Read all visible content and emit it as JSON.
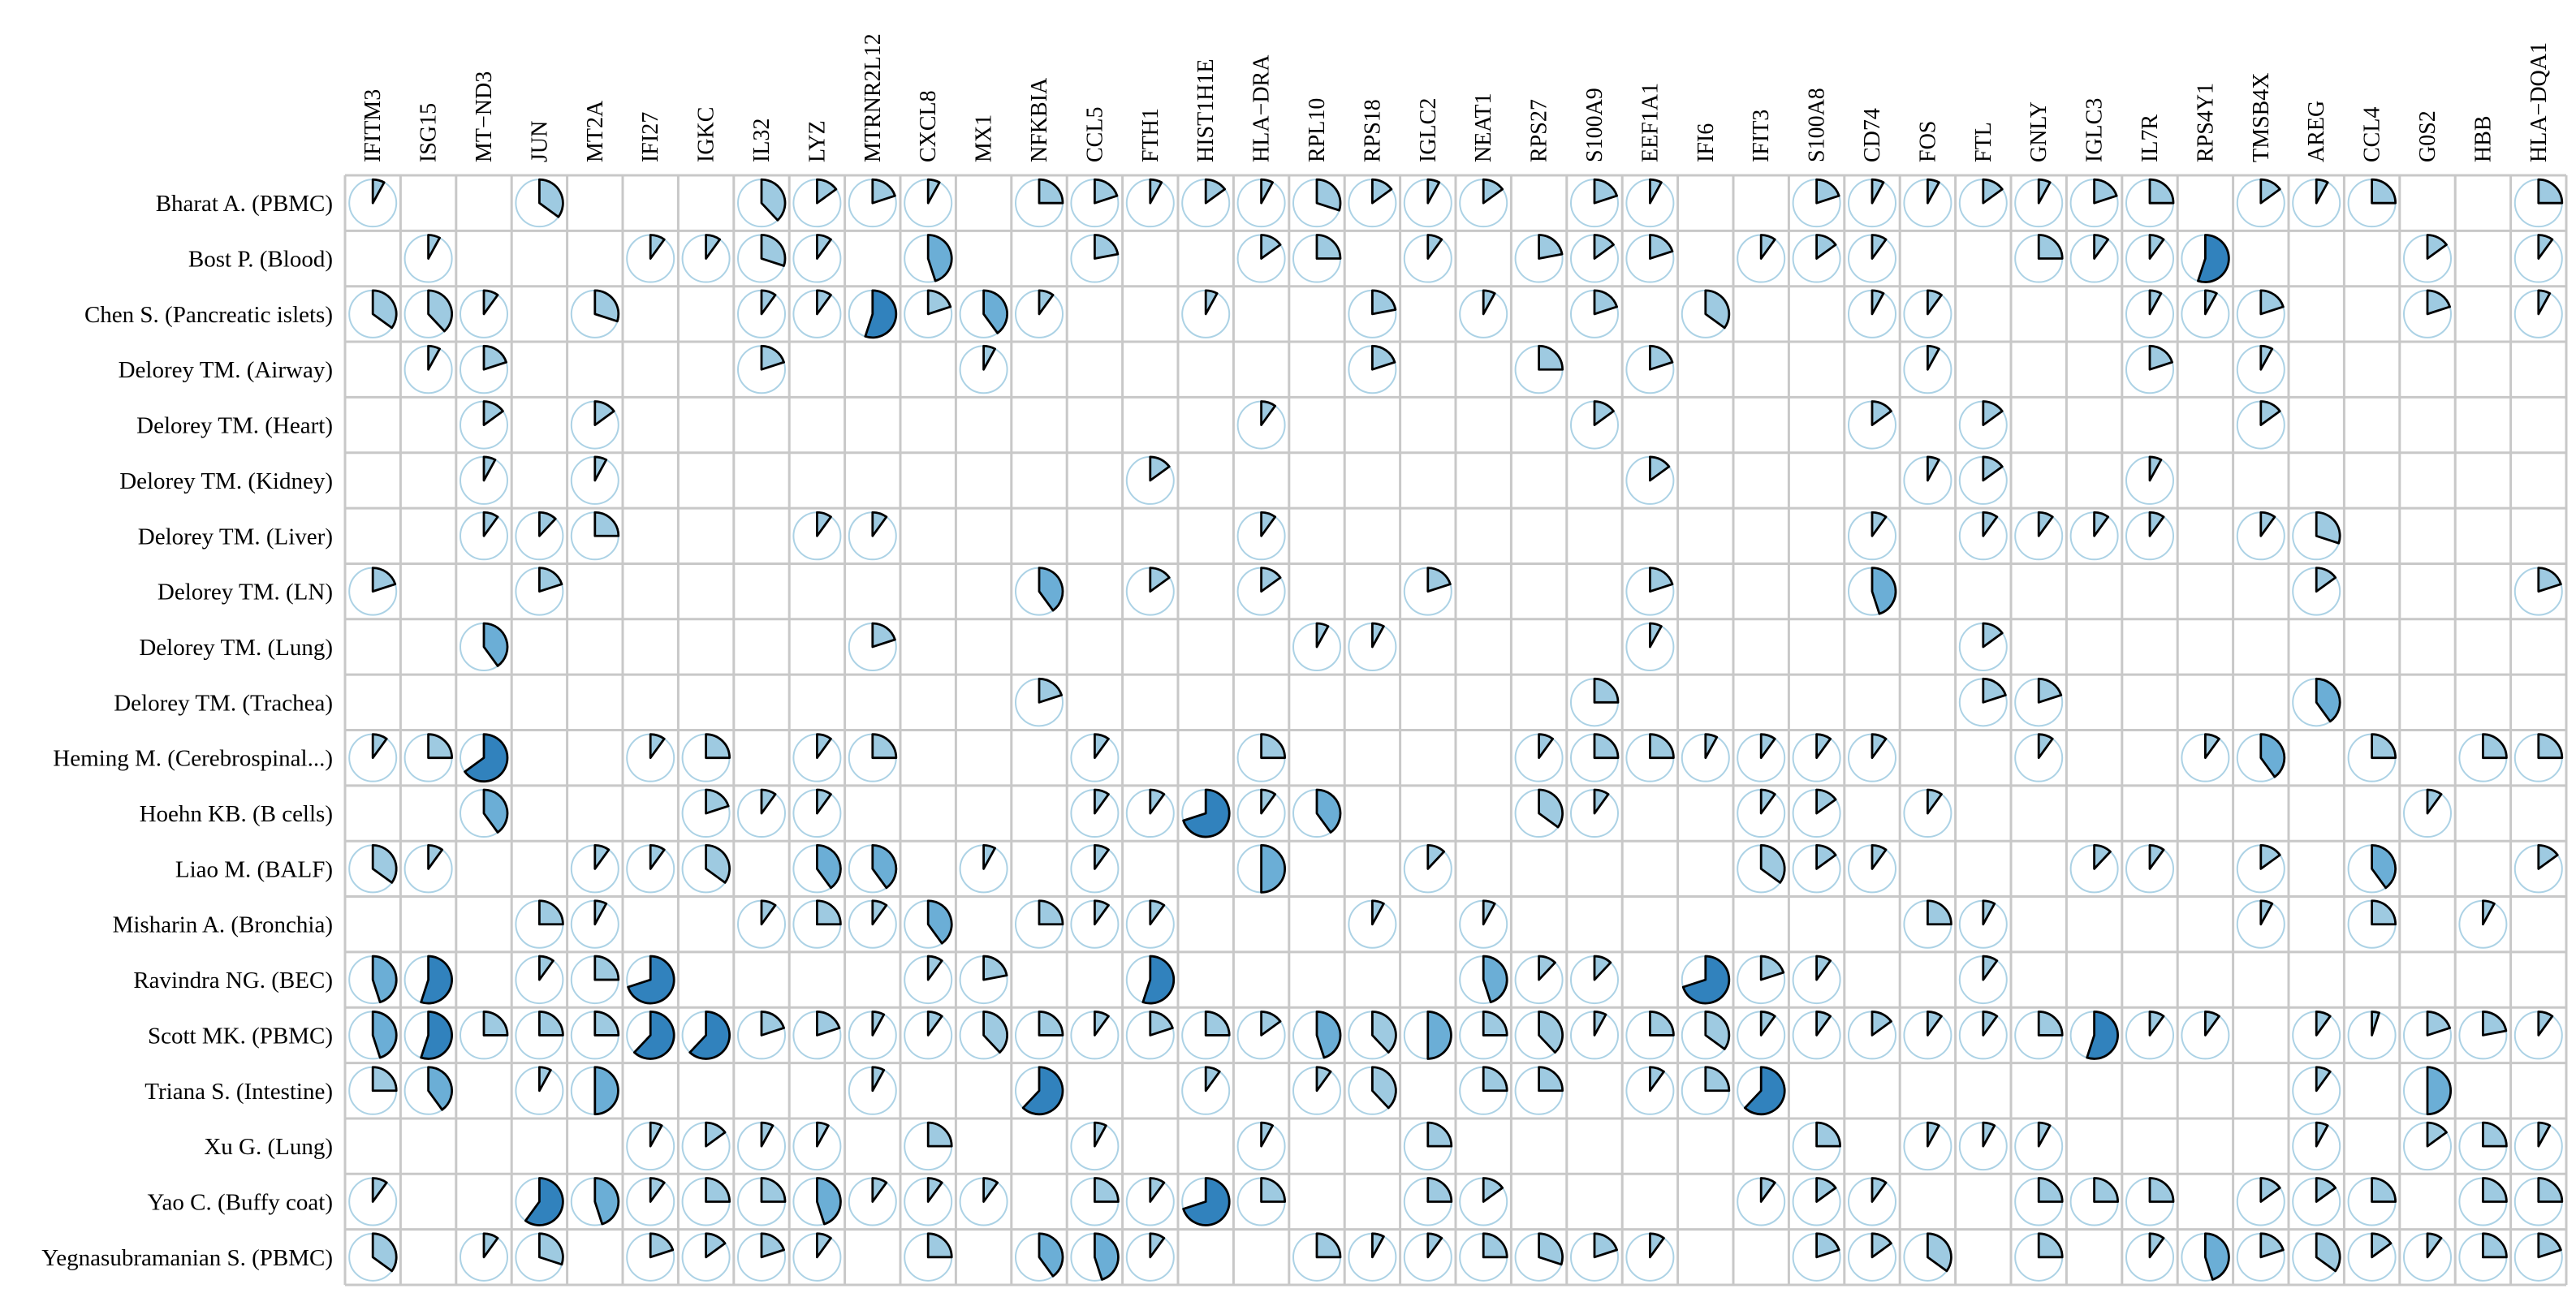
{
  "chart_data": {
    "type": "heatmap",
    "title": "",
    "xlabel": "",
    "ylabel": "",
    "value_range": [
      0,
      1
    ],
    "colors": {
      "grid": "#c8c8c8",
      "ring": "#9ecae1",
      "light": "#9ecae1",
      "mid": "#6baed6",
      "dark": "#3182bd",
      "outline": "#000000"
    },
    "columns": [
      "IFITM3",
      "ISG15",
      "MT−ND3",
      "JUN",
      "MT2A",
      "IFI27",
      "IGKC",
      "IL32",
      "LYZ",
      "MTRNR2L12",
      "CXCL8",
      "MX1",
      "NFKBIA",
      "CCL5",
      "FTH1",
      "HIST1H1E",
      "HLA−DRA",
      "RPL10",
      "RPS18",
      "IGLC2",
      "NEAT1",
      "RPS27",
      "S100A9",
      "EEF1A1",
      "IFI6",
      "IFIT3",
      "S100A8",
      "CD74",
      "FOS",
      "FTL",
      "GNLY",
      "IGLC3",
      "IL7R",
      "RPS4Y1",
      "TMSB4X",
      "AREG",
      "CCL4",
      "G0S2",
      "HBB",
      "HLA−DQA1"
    ],
    "rows": [
      "Bharat A. (PBMC)",
      "Bost P. (Blood)",
      "Chen S. (Pancreatic islets)",
      "Delorey TM. (Airway)",
      "Delorey TM. (Heart)",
      "Delorey TM. (Kidney)",
      "Delorey TM. (Liver)",
      "Delorey TM. (LN)",
      "Delorey TM. (Lung)",
      "Delorey TM. (Trachea)",
      "Heming M. (Cerebrospinal...)",
      "Hoehn KB. (B cells)",
      "Liao M. (BALF)",
      "Misharin A. (Bronchia)",
      "Ravindra NG. (BEC)",
      "Scott MK. (PBMC)",
      "Triana S. (Intestine)",
      "Xu G. (Lung)",
      "Yao C. (Buffy coat)",
      "Yegnasubramanian S. (PBMC)"
    ],
    "values": [
      [
        0.08,
        0,
        0,
        0.35,
        0,
        0,
        0,
        0.38,
        0.15,
        0.2,
        0.08,
        0,
        0.25,
        0.2,
        0.08,
        0.15,
        0.08,
        0.3,
        0.15,
        0.08,
        0.15,
        0,
        0.2,
        0.08,
        0,
        0,
        0.2,
        0.08,
        0.08,
        0.15,
        0.08,
        0.2,
        0.25,
        0,
        0.15,
        0.08,
        0.25,
        0,
        0,
        0.25
      ],
      [
        0,
        0.08,
        0,
        0,
        0,
        0.1,
        0.1,
        0.3,
        0.1,
        0,
        0.45,
        0,
        0,
        0.22,
        0,
        0,
        0.15,
        0.25,
        0,
        0.1,
        0,
        0.22,
        0.15,
        0.2,
        0,
        0.1,
        0.15,
        0.1,
        0,
        0,
        0.25,
        0.1,
        0.1,
        0.55,
        0,
        0,
        0,
        0.15,
        0,
        0.1
      ],
      [
        0.35,
        0.38,
        0.1,
        0,
        0.3,
        0,
        0,
        0.1,
        0.1,
        0.55,
        0.2,
        0.4,
        0.1,
        0,
        0,
        0.08,
        0,
        0,
        0.22,
        0,
        0.08,
        0,
        0.2,
        0,
        0.35,
        0,
        0,
        0.08,
        0.1,
        0,
        0,
        0,
        0.08,
        0.08,
        0.2,
        0,
        0,
        0.2,
        0,
        0.08
      ],
      [
        0,
        0.08,
        0.2,
        0,
        0,
        0,
        0,
        0.2,
        0,
        0,
        0,
        0.08,
        0,
        0,
        0,
        0,
        0,
        0,
        0.2,
        0,
        0,
        0.25,
        0,
        0.2,
        0,
        0,
        0,
        0,
        0.08,
        0,
        0,
        0,
        0.2,
        0,
        0.08,
        0,
        0,
        0,
        0,
        0
      ],
      [
        0,
        0,
        0.15,
        0,
        0.15,
        0,
        0,
        0,
        0,
        0,
        0,
        0,
        0,
        0,
        0,
        0,
        0.1,
        0,
        0,
        0,
        0,
        0,
        0.15,
        0,
        0,
        0,
        0,
        0.15,
        0,
        0.15,
        0,
        0,
        0,
        0,
        0.15,
        0,
        0,
        0,
        0,
        0
      ],
      [
        0,
        0,
        0.08,
        0,
        0.08,
        0,
        0,
        0,
        0,
        0,
        0,
        0,
        0,
        0,
        0.15,
        0,
        0,
        0,
        0,
        0,
        0,
        0,
        0,
        0.15,
        0,
        0,
        0,
        0,
        0.08,
        0.15,
        0,
        0,
        0.08,
        0,
        0,
        0,
        0,
        0,
        0,
        0
      ],
      [
        0,
        0,
        0.1,
        0.12,
        0.25,
        0,
        0,
        0,
        0.1,
        0.1,
        0,
        0,
        0,
        0,
        0,
        0,
        0.1,
        0,
        0,
        0,
        0,
        0,
        0,
        0,
        0,
        0,
        0,
        0.1,
        0,
        0.1,
        0.1,
        0.1,
        0.1,
        0,
        0.1,
        0.3,
        0,
        0,
        0,
        0
      ],
      [
        0.2,
        0,
        0,
        0.2,
        0,
        0,
        0,
        0,
        0,
        0,
        0,
        0,
        0.4,
        0,
        0.15,
        0,
        0.15,
        0,
        0,
        0.2,
        0,
        0,
        0,
        0.2,
        0,
        0,
        0,
        0.45,
        0,
        0,
        0,
        0,
        0,
        0,
        0,
        0.15,
        0,
        0,
        0,
        0.2
      ],
      [
        0,
        0,
        0.4,
        0,
        0,
        0,
        0,
        0,
        0,
        0.2,
        0,
        0,
        0,
        0,
        0,
        0,
        0,
        0.08,
        0.08,
        0,
        0,
        0,
        0,
        0.08,
        0,
        0,
        0,
        0,
        0,
        0.15,
        0,
        0,
        0,
        0,
        0,
        0,
        0,
        0,
        0,
        0
      ],
      [
        0,
        0,
        0,
        0,
        0,
        0,
        0,
        0,
        0,
        0,
        0,
        0,
        0.2,
        0,
        0,
        0,
        0,
        0,
        0,
        0,
        0,
        0,
        0.25,
        0,
        0,
        0,
        0,
        0,
        0,
        0.2,
        0.2,
        0,
        0,
        0,
        0,
        0.4,
        0,
        0,
        0,
        0
      ],
      [
        0.1,
        0.25,
        0.65,
        0,
        0,
        0.1,
        0.25,
        0,
        0.1,
        0.25,
        0,
        0,
        0,
        0.1,
        0,
        0,
        0.25,
        0,
        0,
        0,
        0,
        0.1,
        0.25,
        0.25,
        0.08,
        0.1,
        0.1,
        0.1,
        0,
        0,
        0.1,
        0,
        0,
        0.1,
        0.4,
        0,
        0.25,
        0,
        0.25,
        0.25
      ],
      [
        0,
        0,
        0.4,
        0,
        0,
        0,
        0.2,
        0.1,
        0.1,
        0,
        0,
        0,
        0,
        0.1,
        0.1,
        0.7,
        0.1,
        0.4,
        0,
        0,
        0,
        0.35,
        0.1,
        0,
        0,
        0.1,
        0.15,
        0,
        0.1,
        0,
        0,
        0,
        0,
        0,
        0,
        0,
        0,
        0.1,
        0,
        0
      ],
      [
        0.35,
        0.1,
        0,
        0,
        0.1,
        0.1,
        0.35,
        0,
        0.4,
        0.4,
        0,
        0.08,
        0,
        0.1,
        0,
        0,
        0.5,
        0,
        0,
        0.12,
        0,
        0,
        0,
        0,
        0,
        0.35,
        0.15,
        0.1,
        0,
        0,
        0,
        0.12,
        0.1,
        0,
        0.15,
        0,
        0.4,
        0,
        0,
        0.15
      ],
      [
        0,
        0,
        0,
        0.25,
        0.08,
        0,
        0,
        0.1,
        0.25,
        0.1,
        0.4,
        0,
        0.25,
        0.1,
        0.1,
        0,
        0,
        0,
        0.08,
        0,
        0.08,
        0,
        0,
        0,
        0,
        0,
        0,
        0,
        0.25,
        0.08,
        0,
        0,
        0,
        0,
        0.08,
        0,
        0.25,
        0,
        0.08,
        0
      ],
      [
        0.45,
        0.55,
        0,
        0.1,
        0.25,
        0.7,
        0,
        0,
        0,
        0,
        0.1,
        0.22,
        0,
        0,
        0.55,
        0,
        0,
        0,
        0,
        0,
        0.45,
        0.12,
        0.12,
        0,
        0.7,
        0.2,
        0.1,
        0,
        0,
        0.1,
        0,
        0,
        0,
        0,
        0,
        0,
        0,
        0,
        0,
        0
      ],
      [
        0.45,
        0.55,
        0.25,
        0.25,
        0.25,
        0.62,
        0.62,
        0.2,
        0.2,
        0.08,
        0.1,
        0.38,
        0.25,
        0.1,
        0.2,
        0.25,
        0.15,
        0.45,
        0.38,
        0.5,
        0.25,
        0.38,
        0.08,
        0.25,
        0.35,
        0.1,
        0.1,
        0.15,
        0.1,
        0.1,
        0.25,
        0.55,
        0.1,
        0.1,
        0,
        0.1,
        0.05,
        0.2,
        0.22,
        0.1
      ],
      [
        0.25,
        0.4,
        0,
        0.08,
        0.5,
        0,
        0,
        0,
        0,
        0.08,
        0,
        0,
        0.62,
        0,
        0,
        0.1,
        0,
        0.1,
        0.38,
        0,
        0.25,
        0.25,
        0,
        0.1,
        0.25,
        0.62,
        0,
        0,
        0,
        0,
        0,
        0,
        0,
        0,
        0,
        0.1,
        0,
        0.5,
        0,
        0
      ],
      [
        0,
        0,
        0,
        0,
        0,
        0.08,
        0.15,
        0.08,
        0.08,
        0,
        0.25,
        0,
        0,
        0.08,
        0,
        0,
        0.08,
        0,
        0,
        0.25,
        0,
        0,
        0,
        0,
        0,
        0,
        0.25,
        0,
        0.08,
        0.08,
        0.08,
        0,
        0,
        0,
        0,
        0.08,
        0,
        0.15,
        0.25,
        0.08
      ],
      [
        0.1,
        0,
        0,
        0.6,
        0.45,
        0.1,
        0.25,
        0.25,
        0.45,
        0.1,
        0.1,
        0.1,
        0,
        0.25,
        0.1,
        0.7,
        0.25,
        0,
        0,
        0.25,
        0.15,
        0,
        0,
        0,
        0,
        0.1,
        0.15,
        0.1,
        0,
        0,
        0.25,
        0.25,
        0.25,
        0,
        0.15,
        0.15,
        0.25,
        0,
        0.25,
        0.25
      ],
      [
        0.35,
        0,
        0.1,
        0.3,
        0,
        0.2,
        0.15,
        0.2,
        0.1,
        0,
        0.25,
        0,
        0.4,
        0.45,
        0.1,
        0,
        0,
        0.25,
        0.08,
        0.1,
        0.25,
        0.3,
        0.2,
        0.1,
        0,
        0,
        0.2,
        0.15,
        0.35,
        0,
        0.25,
        0,
        0.1,
        0.45,
        0.2,
        0.35,
        0.15,
        0.1,
        0.25,
        0.2
      ]
    ]
  }
}
